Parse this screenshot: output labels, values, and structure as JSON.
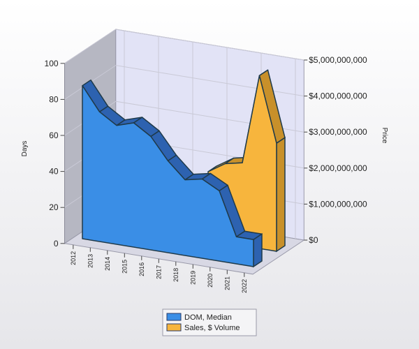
{
  "chart_data": {
    "type": "area",
    "view": "3d",
    "categories": [
      "2012",
      "2013",
      "2014",
      "2015",
      "2016",
      "2017",
      "2018",
      "2019",
      "2020",
      "2021",
      "2022"
    ],
    "series": [
      {
        "name": "DOM, Median",
        "axis": "left",
        "color": "#3a8ee6",
        "values": [
          85,
          72,
          66,
          69,
          63,
          51,
          42,
          44,
          39,
          15,
          15
        ]
      },
      {
        "name": "Sales, $ Volume",
        "axis": "right",
        "color": "#f7b53d",
        "values": [
          null,
          null,
          null,
          null,
          null,
          null,
          1900000000,
          2200000000,
          2300000000,
          4800000000,
          3000000000
        ]
      }
    ],
    "y_left": {
      "label": "Days",
      "range": [
        0,
        100
      ],
      "ticks": [
        "0",
        "20",
        "40",
        "60",
        "80",
        "100"
      ]
    },
    "y_right": {
      "label": "Price",
      "range": [
        0,
        5000000000
      ],
      "ticks": [
        "$0",
        "$1,000,000,000",
        "$2,000,000,000",
        "$3,000,000,000",
        "$4,000,000,000",
        "$5,000,000,000"
      ]
    },
    "legend_position": "bottom-center",
    "grid": true,
    "background_gradient": [
      "#ffffff",
      "#e6e6ea"
    ],
    "wall_color": "#e2e3f6",
    "left_wall_color": "#b6b7c2"
  }
}
